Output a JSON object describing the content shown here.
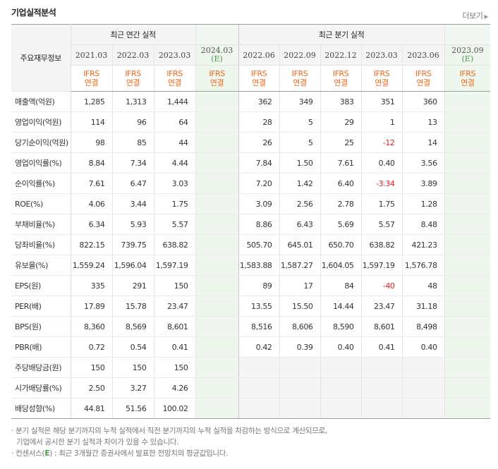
{
  "section_title": "기업실적분석",
  "more_label": "더보기",
  "table": {
    "label_header": "주요재무정보",
    "annual_header": "최근 연간 실적",
    "quarter_header": "최근 분기 실적",
    "annual_periods": [
      "2021.03",
      "2022.03",
      "2023.03"
    ],
    "annual_estimate": {
      "period": "2024.03",
      "mark": "(E)"
    },
    "quarter_periods": [
      "2022.06",
      "2022.09",
      "2022.12",
      "2023.03",
      "2023.06"
    ],
    "quarter_estimate": {
      "period": "2023.09",
      "mark": "(E)"
    },
    "basis_line1": "IFRS",
    "basis_line2": "연결",
    "rows": [
      {
        "label": "매출액(억원)",
        "annual": [
          "1,285",
          "1,313",
          "1,444"
        ],
        "annual_e": "",
        "quarter": [
          "362",
          "349",
          "383",
          "351",
          "360"
        ],
        "quarter_e": ""
      },
      {
        "label": "영업이익(억원)",
        "annual": [
          "114",
          "96",
          "64"
        ],
        "annual_e": "",
        "quarter": [
          "28",
          "5",
          "29",
          "1",
          "13"
        ],
        "quarter_e": ""
      },
      {
        "label": "당기순이익(억원)",
        "annual": [
          "98",
          "85",
          "44"
        ],
        "annual_e": "",
        "quarter": [
          "26",
          "5",
          "25",
          "-12",
          "14"
        ],
        "quarter_e": ""
      },
      {
        "label": "영업이익률(%)",
        "annual": [
          "8.84",
          "7.34",
          "4.44"
        ],
        "annual_e": "",
        "quarter": [
          "7.84",
          "1.50",
          "7.61",
          "0.40",
          "3.56"
        ],
        "quarter_e": ""
      },
      {
        "label": "순이익률(%)",
        "annual": [
          "7.61",
          "6.47",
          "3.03"
        ],
        "annual_e": "",
        "quarter": [
          "7.20",
          "1.42",
          "6.40",
          "-3.34",
          "3.89"
        ],
        "quarter_e": ""
      },
      {
        "label": "ROE(%)",
        "annual": [
          "4.06",
          "3.44",
          "1.75"
        ],
        "annual_e": "",
        "quarter": [
          "3.09",
          "2.56",
          "2.78",
          "1.75",
          "1.28"
        ],
        "quarter_e": ""
      },
      {
        "label": "부채비율(%)",
        "annual": [
          "6.34",
          "5.93",
          "5.57"
        ],
        "annual_e": "",
        "quarter": [
          "8.86",
          "6.43",
          "5.69",
          "5.57",
          "8.48"
        ],
        "quarter_e": ""
      },
      {
        "label": "당좌비율(%)",
        "annual": [
          "822.15",
          "739.75",
          "638.82"
        ],
        "annual_e": "",
        "quarter": [
          "505.70",
          "645.01",
          "650.70",
          "638.82",
          "421.23"
        ],
        "quarter_e": ""
      },
      {
        "label": "유보율(%)",
        "annual": [
          "1,559.24",
          "1,596.04",
          "1,597.19"
        ],
        "annual_e": "",
        "quarter": [
          "1,583.88",
          "1,587.27",
          "1,604.05",
          "1,597.19",
          "1,576.78"
        ],
        "quarter_e": ""
      },
      {
        "label": "EPS(원)",
        "annual": [
          "335",
          "291",
          "150"
        ],
        "annual_e": "",
        "quarter": [
          "89",
          "17",
          "84",
          "-40",
          "48"
        ],
        "quarter_e": ""
      },
      {
        "label": "PER(배)",
        "annual": [
          "17.89",
          "15.78",
          "23.47"
        ],
        "annual_e": "",
        "quarter": [
          "13.55",
          "15.50",
          "14.44",
          "23.47",
          "31.18"
        ],
        "quarter_e": ""
      },
      {
        "label": "BPS(원)",
        "annual": [
          "8,360",
          "8,569",
          "8,601"
        ],
        "annual_e": "",
        "quarter": [
          "8,516",
          "8,606",
          "8,590",
          "8,601",
          "8,498"
        ],
        "quarter_e": ""
      },
      {
        "label": "PBR(배)",
        "annual": [
          "0.72",
          "0.54",
          "0.41"
        ],
        "annual_e": "",
        "quarter": [
          "0.42",
          "0.39",
          "0.40",
          "0.41",
          "0.40"
        ],
        "quarter_e": ""
      },
      {
        "label": "주당배당금(원)",
        "annual": [
          "150",
          "150",
          "150"
        ],
        "annual_e": "",
        "quarter": [
          "",
          "",
          "",
          "",
          ""
        ],
        "quarter_e": "",
        "quarter_blank": true
      },
      {
        "label": "시가배당률(%)",
        "annual": [
          "2.50",
          "3.27",
          "4.26"
        ],
        "annual_e": "",
        "quarter": [
          "",
          "",
          "",
          "",
          ""
        ],
        "quarter_e": "",
        "quarter_blank": true
      },
      {
        "label": "배당성향(%)",
        "annual": [
          "44.81",
          "51.56",
          "100.02"
        ],
        "annual_e": "",
        "quarter": [
          "",
          "",
          "",
          "",
          ""
        ],
        "quarter_e": "",
        "quarter_blank": true
      }
    ],
    "group_breaks": [
      3,
      6,
      9,
      13
    ]
  },
  "notes": {
    "line1": "· 분기 실적은 해당 분기까지의 누적 실적에서 직전 분기까지의 누적 실적을 차감하는 방식으로 계산되므로,",
    "line2": "기업에서 공시한 분기 실적과 차이가 있을 수 있습니다.",
    "line3_prefix": "· 컨센서스(",
    "line3_mark": "E",
    "line3_suffix": ") : 최근 3개월간 증권사에서 발표한 전망치의 평균값입니다."
  },
  "colors": {
    "ifrs": "#ea6a1c",
    "negative": "#e02020",
    "estimate_bg": "#eef6ee",
    "estimate_mark": "#4a9a4a"
  }
}
